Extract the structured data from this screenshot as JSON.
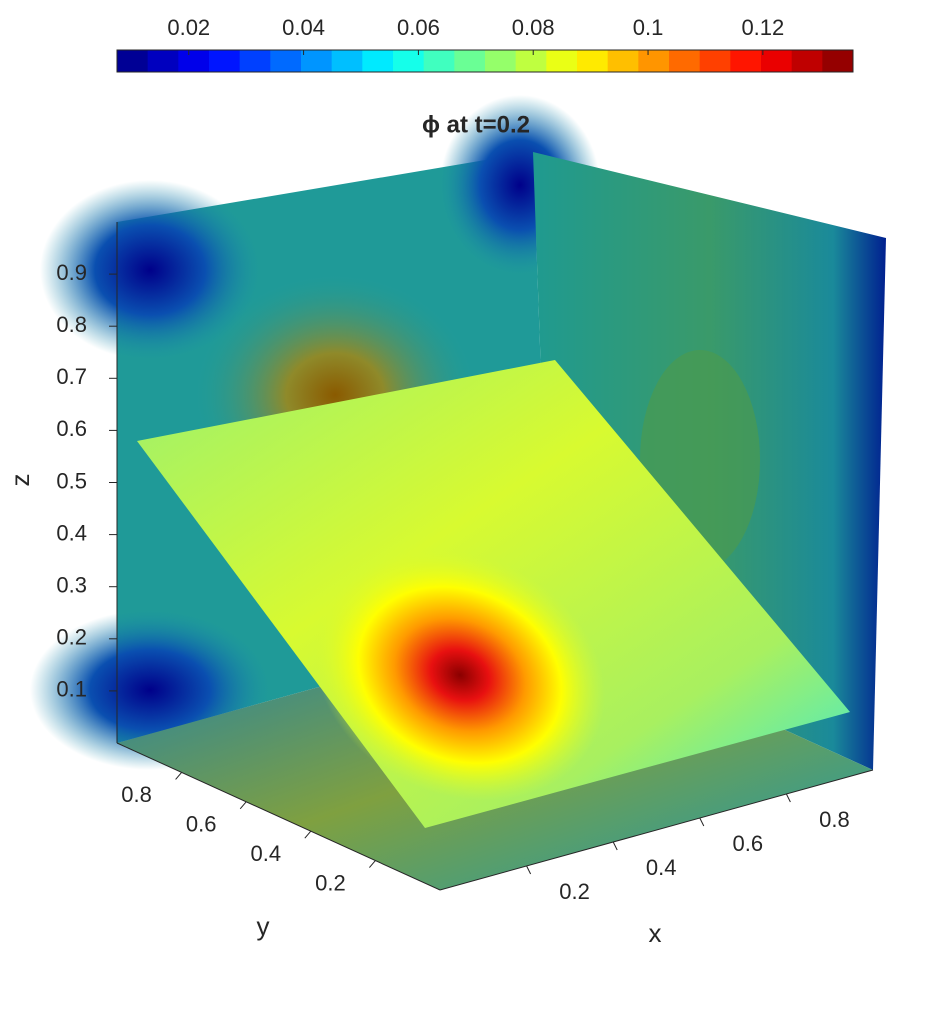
{
  "chart_data": {
    "type": "slice3d",
    "title": "ϕ  at  t=0.2",
    "xlabel": "x",
    "ylabel": "y",
    "zlabel": "z",
    "xlim": [
      0,
      1
    ],
    "ylim": [
      0,
      1
    ],
    "zlim": [
      0,
      1
    ],
    "xticks": [
      0.2,
      0.4,
      0.6,
      0.8
    ],
    "yticks": [
      0.2,
      0.4,
      0.6,
      0.8
    ],
    "zticks": [
      0.1,
      0.2,
      0.3,
      0.4,
      0.5,
      0.6,
      0.7,
      0.8,
      0.9
    ],
    "colorbar": {
      "lim": [
        0.0075,
        0.1357
      ],
      "ticks": [
        0.02,
        0.04,
        0.06,
        0.08,
        0.1,
        0.12
      ],
      "colormap": "jet",
      "levels": 24
    }
  }
}
